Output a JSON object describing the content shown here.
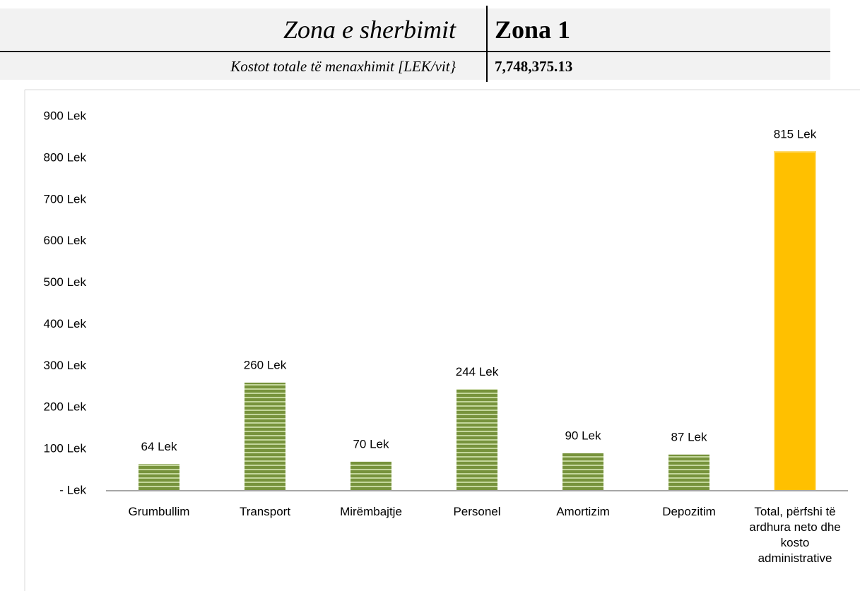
{
  "header": {
    "rows": [
      [
        "Zona e sherbimit",
        "Zona 1"
      ],
      [
        "Kostot totale të menaxhimit [LEK/vit}",
        "7,748,375.13"
      ]
    ]
  },
  "chart_data": {
    "type": "bar",
    "categories": [
      "Grumbullim",
      "Transport",
      "Mirëmbajtje",
      "Personel",
      "Amortizim",
      "Depozitim",
      "Total, përfshi të ardhura neto dhe kosto administrative"
    ],
    "values": [
      64,
      260,
      70,
      244,
      90,
      87,
      815
    ],
    "value_labels": [
      "64 Lek",
      "260 Lek",
      "70 Lek",
      "244 Lek",
      "90 Lek",
      "87 Lek",
      "815 Lek"
    ],
    "colors": [
      "#77933c",
      "#77933c",
      "#77933c",
      "#77933c",
      "#77933c",
      "#77933c",
      "#ffc000"
    ],
    "ylim": [
      0,
      900
    ],
    "yticks": [
      {
        "value": 0,
        "label": "- Lek"
      },
      {
        "value": 100,
        "label": "100 Lek"
      },
      {
        "value": 200,
        "label": "200 Lek"
      },
      {
        "value": 300,
        "label": "300 Lek"
      },
      {
        "value": 400,
        "label": "400 Lek"
      },
      {
        "value": 500,
        "label": "500 Lek"
      },
      {
        "value": 600,
        "label": "600 Lek"
      },
      {
        "value": 700,
        "label": "700 Lek"
      },
      {
        "value": 800,
        "label": "800 Lek"
      },
      {
        "value": 900,
        "label": "900 Lek"
      }
    ],
    "grid": false
  }
}
